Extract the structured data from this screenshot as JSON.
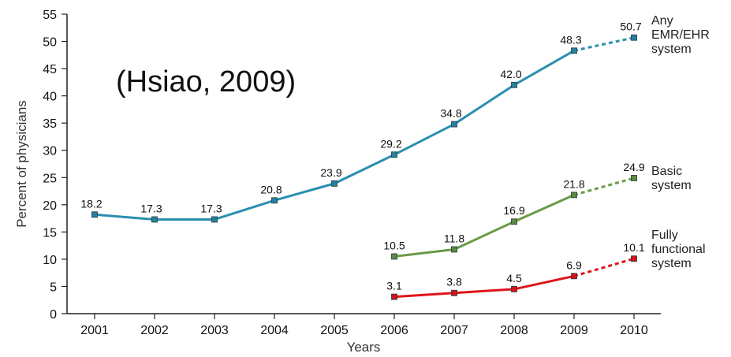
{
  "chart_data": {
    "type": "line",
    "annotation": "(Hsiao, 2009)",
    "xlabel": "Years",
    "ylabel": "Percent of physicians",
    "ylim": [
      0,
      55
    ],
    "yticks": [
      0,
      5,
      10,
      15,
      20,
      25,
      30,
      35,
      40,
      45,
      50,
      55
    ],
    "categories": [
      "2001",
      "2002",
      "2003",
      "2004",
      "2005",
      "2006",
      "2007",
      "2008",
      "2009",
      "2010"
    ],
    "grid": false,
    "series": [
      {
        "name": "Any EMR/EHR system",
        "label_lines": [
          "Any",
          "EMR/EHR",
          "system"
        ],
        "color": "#2a8fb0",
        "marker_color": "#2a7f9c",
        "values": [
          18.2,
          17.3,
          17.3,
          20.8,
          23.9,
          29.2,
          34.8,
          42.0,
          48.3,
          50.7
        ],
        "value_labels": [
          "18.2",
          "17.3",
          "17.3",
          "20.8",
          "23.9",
          "29.2",
          "34.8",
          "42.0",
          "48.3",
          "50.7"
        ],
        "projected_from_index": 8
      },
      {
        "name": "Basic system",
        "label_lines": [
          "Basic",
          "system"
        ],
        "color": "#6a9a47",
        "marker_color": "#5c8a3e",
        "values": [
          null,
          null,
          null,
          null,
          null,
          10.5,
          11.8,
          16.9,
          21.8,
          24.9
        ],
        "value_labels": [
          null,
          null,
          null,
          null,
          null,
          "10.5",
          "11.8",
          "16.9",
          "21.8",
          "24.9"
        ],
        "projected_from_index": 8
      },
      {
        "name": "Fully functional system",
        "label_lines": [
          "Fully",
          "functional",
          "system"
        ],
        "color": "#e0141b",
        "marker_color": "#d21319",
        "values": [
          null,
          null,
          null,
          null,
          null,
          3.1,
          3.8,
          4.5,
          6.9,
          10.1
        ],
        "value_labels": [
          null,
          null,
          null,
          null,
          null,
          "3.1",
          "3.8",
          "4.5",
          "6.9",
          "10.1"
        ],
        "projected_from_index": 8
      }
    ]
  }
}
